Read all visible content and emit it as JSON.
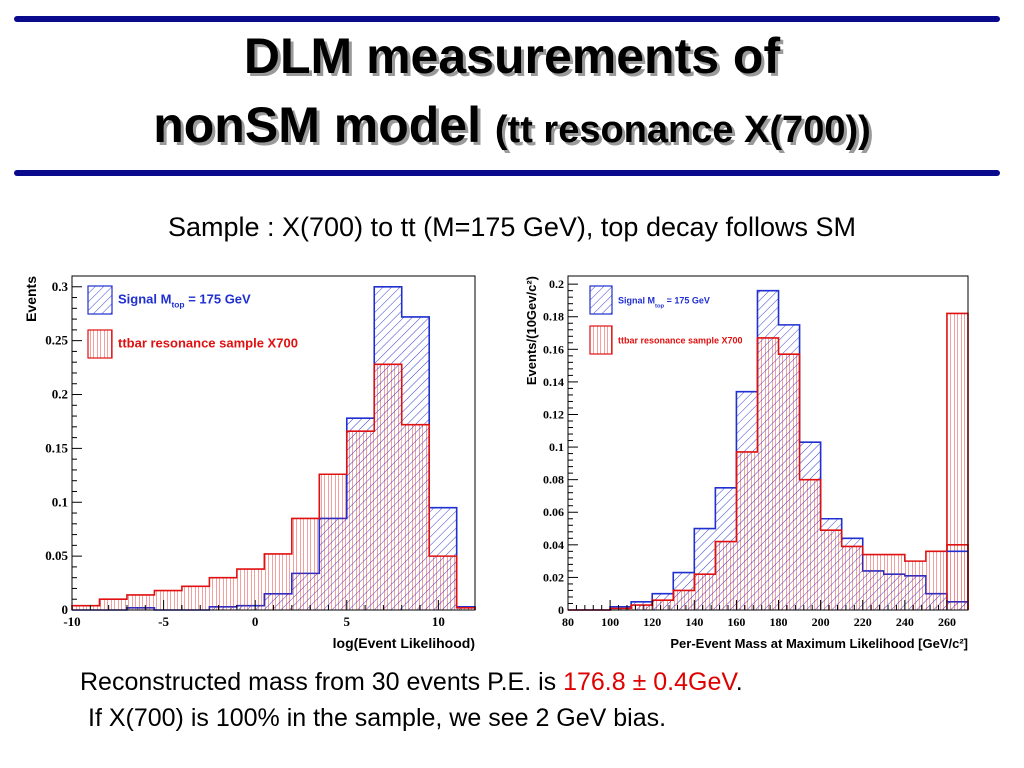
{
  "slide": {
    "title_line1": "DLM measurements of",
    "title_line2_main": "nonSM model",
    "title_line2_sub": "(tt resonance X(700))",
    "subtitle": "Sample : X(700) to tt (M=175 GeV), top decay follows SM",
    "result_prefix": "Reconstructed mass from 30 events P.E. is ",
    "result_value": "176.8 ± 0.4GeV",
    "result_suffix": ".",
    "bias_note": "If X(700) is 100% in the sample, we see 2 GeV bias."
  },
  "chart_data": [
    {
      "type": "histogram",
      "xlabel": "log(Event Likelihood)",
      "ylabel": "Events",
      "xlim": [
        -10,
        12
      ],
      "ylim": [
        0,
        0.31
      ],
      "xticks": [
        -10,
        -5,
        0,
        5,
        10
      ],
      "yticks": [
        0,
        0.05,
        0.1,
        0.15,
        0.2,
        0.25,
        0.3
      ],
      "ytick_labels": [
        "0",
        "0.05",
        "0.1",
        "0.15",
        "0.2",
        "0.25",
        "0.3"
      ],
      "edges": [
        -10,
        -8.5,
        -7,
        -5.5,
        -4,
        -2.5,
        -1,
        0.5,
        2,
        3.5,
        5,
        6.5,
        8,
        9.5,
        11,
        12
      ],
      "legend_position": "top-left",
      "series": [
        {
          "name": "Signal M_top = 175 GeV",
          "legend_main": "Signal M",
          "legend_sub": "top",
          "legend_rest": " = 175 GeV",
          "color": "#1f2fd0",
          "values": [
            0.0,
            0.0,
            0.002,
            0.0,
            0.0,
            0.003,
            0.004,
            0.015,
            0.034,
            0.085,
            0.178,
            0.3,
            0.272,
            0.095,
            0.003
          ]
        },
        {
          "name": "ttbar resonance sample X700",
          "legend_main": "ttbar resonance sample X700",
          "color": "#e01010",
          "values": [
            0.004,
            0.01,
            0.014,
            0.018,
            0.022,
            0.03,
            0.038,
            0.052,
            0.085,
            0.126,
            0.166,
            0.228,
            0.172,
            0.05,
            0.002
          ]
        }
      ]
    },
    {
      "type": "histogram",
      "xlabel": "Per-Event Mass at Maximum Likelihood [GeV/c²]",
      "ylabel": "Events/(10Gev/c²)",
      "xlim": [
        80,
        270
      ],
      "ylim": [
        0,
        0.205
      ],
      "xticks": [
        80,
        100,
        120,
        140,
        160,
        180,
        200,
        220,
        240,
        260
      ],
      "yticks": [
        0,
        0.02,
        0.04,
        0.06,
        0.08,
        0.1,
        0.12,
        0.14,
        0.16,
        0.18,
        0.2
      ],
      "ytick_labels": [
        "0",
        "0.02",
        "0.04",
        "0.06",
        "0.08",
        "0.1",
        "0.12",
        "0.14",
        "0.16",
        "0.18",
        "0.2"
      ],
      "edges": [
        80,
        90,
        100,
        110,
        120,
        130,
        140,
        150,
        160,
        170,
        180,
        190,
        200,
        210,
        220,
        230,
        240,
        250,
        260,
        270
      ],
      "legend_position": "top-left",
      "series": [
        {
          "name": "Signal M_top = 175 GeV",
          "legend_main": "Signal M",
          "legend_sub": "top",
          "legend_rest": " = 175 GeV",
          "color": "#1f2fd0",
          "values": [
            0.0,
            0.0,
            0.002,
            0.005,
            0.01,
            0.023,
            0.05,
            0.075,
            0.134,
            0.196,
            0.175,
            0.103,
            0.056,
            0.044,
            0.024,
            0.022,
            0.021,
            0.01,
            0.005
          ]
        },
        {
          "name": "ttbar resonance sample X700",
          "legend_main": "ttbar resonance sample X700",
          "color": "#e01010",
          "values": [
            0.0,
            0.0,
            0.001,
            0.003,
            0.006,
            0.012,
            0.022,
            0.042,
            0.097,
            0.167,
            0.157,
            0.08,
            0.049,
            0.039,
            0.034,
            0.034,
            0.03,
            0.036,
            0.04
          ]
        }
      ],
      "overflow_last_bin": {
        "series": "ttbar resonance sample X700",
        "value": 0.182,
        "signal_value": 0.036
      }
    }
  ]
}
